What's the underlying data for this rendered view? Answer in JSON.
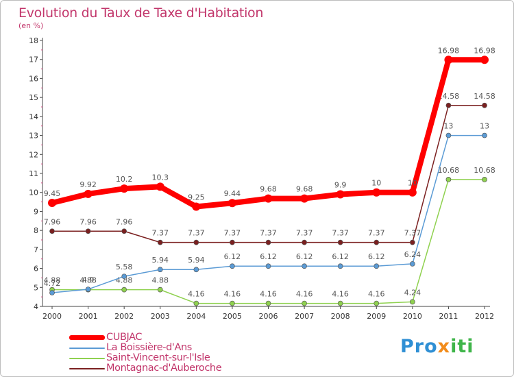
{
  "chart_data": {
    "type": "line",
    "title": "Evolution du Taux de Taxe d'Habitation",
    "subtitle": "(en %)",
    "xlabel": "",
    "ylabel": "",
    "categories": [
      "2000",
      "2001",
      "2002",
      "2003",
      "2004",
      "2005",
      "2006",
      "2007",
      "2008",
      "2009",
      "2010",
      "2011",
      "2012"
    ],
    "ylim": [
      4,
      18
    ],
    "yticks": [
      "4",
      "5",
      "6",
      "7",
      "8",
      "9",
      "10",
      "11",
      "12",
      "13",
      "14",
      "15",
      "16",
      "17",
      "18"
    ],
    "series": [
      {
        "name": "CUBJAC",
        "color": "#ff0000",
        "values": [
          9.45,
          9.92,
          10.2,
          10.3,
          9.25,
          9.44,
          9.68,
          9.68,
          9.9,
          10,
          10,
          16.98,
          16.98
        ],
        "labels": [
          "9.45",
          "9.92",
          "10.2",
          "10.3",
          "9.25",
          "9.44",
          "9.68",
          "9.68",
          "9.9",
          "10",
          "10",
          "16.98",
          "16.98"
        ]
      },
      {
        "name": "La Boissière-d'Ans",
        "color": "#5b9bd5",
        "values": [
          4.72,
          4.9,
          5.58,
          5.94,
          5.94,
          6.12,
          6.12,
          6.12,
          6.12,
          6.12,
          6.24,
          13,
          13
        ],
        "labels": [
          "4.72",
          "4.9",
          "5.58",
          "5.94",
          "5.94",
          "6.12",
          "6.12",
          "6.12",
          "6.12",
          "6.12",
          "6.24",
          "13",
          "13"
        ]
      },
      {
        "name": "Saint-Vincent-sur-l'Isle",
        "color": "#8fd14f",
        "values": [
          4.88,
          4.88,
          4.88,
          4.88,
          4.16,
          4.16,
          4.16,
          4.16,
          4.16,
          4.16,
          4.24,
          10.68,
          10.68
        ],
        "labels": [
          "4.88",
          "4.88",
          "4.88",
          "4.88",
          "4.16",
          "4.16",
          "4.16",
          "4.16",
          "4.16",
          "4.16",
          "4.24",
          "10.68",
          "10.68"
        ]
      },
      {
        "name": "Montagnac-d'Auberoche",
        "color": "#7b2020",
        "values": [
          7.96,
          7.96,
          7.96,
          7.37,
          7.37,
          7.37,
          7.37,
          7.37,
          7.37,
          7.37,
          7.37,
          14.58,
          14.58
        ],
        "labels": [
          "7.96",
          "7.96",
          "7.96",
          "7.37",
          "7.37",
          "7.37",
          "7.37",
          "7.37",
          "7.37",
          "7.37",
          "7.37",
          "14.58",
          "14.58"
        ]
      }
    ],
    "legend": "bottom-left",
    "grid": false
  },
  "brand": {
    "part1": "Pro",
    "part2": "x",
    "part3": "iti"
  },
  "colors": {
    "title": "#c2366b",
    "axis": "#333333"
  }
}
